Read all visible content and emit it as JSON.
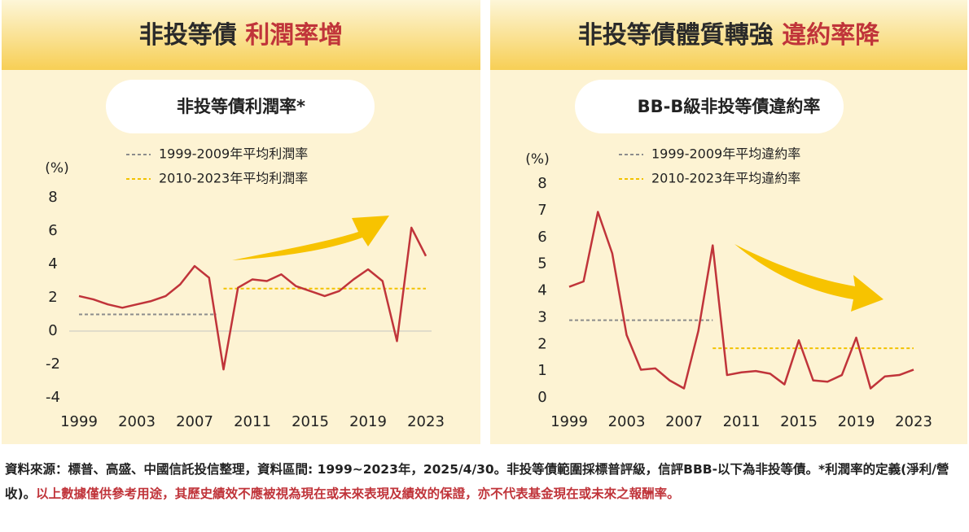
{
  "chart_data": [
    {
      "type": "line",
      "headline": [
        "非投等債 ",
        "利潤率增"
      ],
      "title": "非投等債利潤率*",
      "ylabel": "(%)",
      "x": [
        1999,
        2000,
        2001,
        2002,
        2003,
        2004,
        2005,
        2006,
        2007,
        2008,
        2009,
        2010,
        2011,
        2012,
        2013,
        2014,
        2015,
        2016,
        2017,
        2018,
        2019,
        2020,
        2021,
        2022,
        2023
      ],
      "series": [
        {
          "color": "#c0343a",
          "values": [
            2.1,
            1.9,
            1.6,
            1.4,
            1.6,
            1.8,
            2.1,
            2.8,
            3.9,
            3.2,
            -2.3,
            2.6,
            3.1,
            3.0,
            3.4,
            2.7,
            2.4,
            2.1,
            2.4,
            3.1,
            3.7,
            3.0,
            -0.6,
            6.2,
            4.5
          ]
        }
      ],
      "reference_lines": [
        {
          "name": "1999-2009年平均利潤率",
          "color": "#8c8c8c",
          "value": 1.0,
          "x": [
            1999,
            2008.5
          ]
        },
        {
          "name": "2010-2023年平均利潤率",
          "color": "#f2c200",
          "value": 2.55,
          "x": [
            2009,
            2023
          ]
        }
      ],
      "xlim": [
        1999,
        2023
      ],
      "xticks": [
        1999,
        2003,
        2007,
        2011,
        2015,
        2019,
        2023
      ],
      "ylim": [
        -4,
        8
      ],
      "yticks": [
        -4,
        -2,
        0,
        2,
        4,
        6,
        8
      ],
      "zero_line": true
    },
    {
      "type": "line",
      "headline": [
        "非投等債體質轉強 ",
        "違約率降"
      ],
      "title": "BB-B級非投等債違約率",
      "ylabel": "(%)",
      "x": [
        1999,
        2000,
        2001,
        2002,
        2003,
        2004,
        2005,
        2006,
        2007,
        2008,
        2009,
        2010,
        2011,
        2012,
        2013,
        2014,
        2015,
        2016,
        2017,
        2018,
        2019,
        2020,
        2021,
        2022,
        2023
      ],
      "series": [
        {
          "color": "#c0343a",
          "values": [
            4.15,
            4.35,
            6.95,
            5.4,
            2.35,
            1.05,
            1.1,
            0.65,
            0.35,
            2.5,
            5.7,
            0.85,
            0.95,
            1.0,
            0.9,
            0.5,
            2.15,
            0.65,
            0.6,
            0.85,
            2.25,
            0.35,
            0.8,
            0.85,
            1.05
          ]
        }
      ],
      "reference_lines": [
        {
          "name": "1999-2009年平均違約率",
          "color": "#8c8c8c",
          "value": 2.9,
          "x": [
            1999,
            2009
          ]
        },
        {
          "name": "2010-2023年平均違約率",
          "color": "#f2c200",
          "value": 1.85,
          "x": [
            2009,
            2023
          ]
        }
      ],
      "xlim": [
        1999,
        2023
      ],
      "xticks": [
        1999,
        2003,
        2007,
        2011,
        2015,
        2019,
        2023
      ],
      "ylim": [
        0,
        8
      ],
      "yticks": [
        0,
        1,
        2,
        3,
        4,
        5,
        6,
        7,
        8
      ],
      "zero_line": false
    }
  ],
  "footnote": [
    "資料來源：標普、高盛、中國信託投信整理，資料區間: 1999~2023年，2025/4/30。非投等債範圍採標普評級，信評BBB-以下為非投等債。*利潤率的定義(淨利/營收)。",
    "以上數據僅供參考用途，其歷史績效不應被視為現在或未來表現及績效的保證，亦不代表基金現在或未來之報酬率。"
  ]
}
